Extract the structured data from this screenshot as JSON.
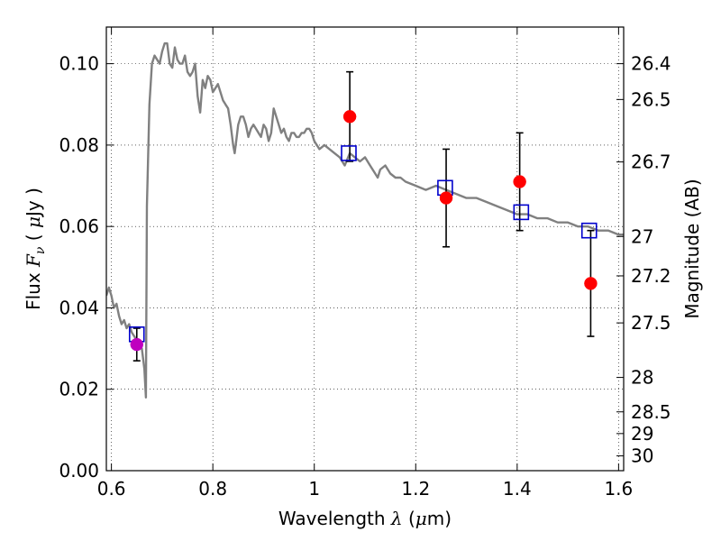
{
  "chart_data": {
    "type": "scatter",
    "xlabel": {
      "prefix": "Wavelength  ",
      "symbol": "λ",
      "suffix": " (",
      "unit_symbol": "μ",
      "unit": "m)"
    },
    "ylabel": {
      "prefix": "Flux  ",
      "symbol": "F",
      "subscript": "ν",
      "suffix": "  ( ",
      "unit_symbol": "μ",
      "unit": "Jy )"
    },
    "y2label": "Magnitude (AB)",
    "xlim": [
      0.59,
      1.61
    ],
    "ylim": [
      0.0,
      0.109
    ],
    "grid": true,
    "x_ticks": [
      {
        "value": 0.6,
        "label": "0.6"
      },
      {
        "value": 0.8,
        "label": "0.8"
      },
      {
        "value": 1.0,
        "label": "1"
      },
      {
        "value": 1.2,
        "label": "1.2"
      },
      {
        "value": 1.4,
        "label": "1.4"
      },
      {
        "value": 1.6,
        "label": "1.6"
      }
    ],
    "y_ticks": [
      {
        "value": 0.0,
        "label": "0.00"
      },
      {
        "value": 0.02,
        "label": "0.02"
      },
      {
        "value": 0.04,
        "label": "0.04"
      },
      {
        "value": 0.06,
        "label": "0.06"
      },
      {
        "value": 0.08,
        "label": "0.08"
      },
      {
        "value": 0.1,
        "label": "0.10"
      }
    ],
    "y2_ticks": [
      {
        "value": 26.4,
        "label": "26.4"
      },
      {
        "value": 26.5,
        "label": "26.5"
      },
      {
        "value": 26.7,
        "label": "26.7"
      },
      {
        "value": 27.0,
        "label": "27"
      },
      {
        "value": 27.2,
        "label": "27.2"
      },
      {
        "value": 27.5,
        "label": "27.5"
      },
      {
        "value": 28.0,
        "label": "28"
      },
      {
        "value": 28.5,
        "label": "28.5"
      },
      {
        "value": 29.0,
        "label": "29"
      },
      {
        "value": 30.0,
        "label": "30"
      }
    ],
    "colors": {
      "model": "#808080",
      "observed": "#ff0000",
      "observed_blue_band": "#bf00bf",
      "synthetic": "#0000cc",
      "errorbar": "#000000"
    },
    "model_spectrum": [
      [
        0.59,
        0.043
      ],
      [
        0.595,
        0.045
      ],
      [
        0.6,
        0.043
      ],
      [
        0.605,
        0.04
      ],
      [
        0.61,
        0.041
      ],
      [
        0.615,
        0.038
      ],
      [
        0.62,
        0.036
      ],
      [
        0.625,
        0.037
      ],
      [
        0.63,
        0.035
      ],
      [
        0.635,
        0.036
      ],
      [
        0.64,
        0.034
      ],
      [
        0.645,
        0.033
      ],
      [
        0.65,
        0.032
      ],
      [
        0.655,
        0.031
      ],
      [
        0.66,
        0.03
      ],
      [
        0.665,
        0.025
      ],
      [
        0.668,
        0.018
      ],
      [
        0.67,
        0.065
      ],
      [
        0.675,
        0.09
      ],
      [
        0.68,
        0.1
      ],
      [
        0.685,
        0.102
      ],
      [
        0.69,
        0.101
      ],
      [
        0.695,
        0.1
      ],
      [
        0.7,
        0.103
      ],
      [
        0.705,
        0.105
      ],
      [
        0.71,
        0.105
      ],
      [
        0.715,
        0.1
      ],
      [
        0.72,
        0.099
      ],
      [
        0.725,
        0.104
      ],
      [
        0.73,
        0.101
      ],
      [
        0.735,
        0.1
      ],
      [
        0.74,
        0.1
      ],
      [
        0.745,
        0.102
      ],
      [
        0.75,
        0.098
      ],
      [
        0.755,
        0.097
      ],
      [
        0.76,
        0.098
      ],
      [
        0.765,
        0.1
      ],
      [
        0.77,
        0.092
      ],
      [
        0.775,
        0.088
      ],
      [
        0.78,
        0.096
      ],
      [
        0.785,
        0.094
      ],
      [
        0.79,
        0.097
      ],
      [
        0.795,
        0.096
      ],
      [
        0.8,
        0.093
      ],
      [
        0.805,
        0.094
      ],
      [
        0.81,
        0.095
      ],
      [
        0.815,
        0.093
      ],
      [
        0.82,
        0.091
      ],
      [
        0.825,
        0.09
      ],
      [
        0.83,
        0.089
      ],
      [
        0.835,
        0.085
      ],
      [
        0.84,
        0.08
      ],
      [
        0.843,
        0.078
      ],
      [
        0.846,
        0.081
      ],
      [
        0.85,
        0.085
      ],
      [
        0.855,
        0.087
      ],
      [
        0.86,
        0.087
      ],
      [
        0.865,
        0.085
      ],
      [
        0.87,
        0.082
      ],
      [
        0.875,
        0.084
      ],
      [
        0.88,
        0.085
      ],
      [
        0.885,
        0.084
      ],
      [
        0.89,
        0.083
      ],
      [
        0.895,
        0.082
      ],
      [
        0.9,
        0.085
      ],
      [
        0.905,
        0.084
      ],
      [
        0.91,
        0.081
      ],
      [
        0.915,
        0.083
      ],
      [
        0.92,
        0.089
      ],
      [
        0.925,
        0.087
      ],
      [
        0.93,
        0.085
      ],
      [
        0.935,
        0.083
      ],
      [
        0.94,
        0.084
      ],
      [
        0.945,
        0.082
      ],
      [
        0.95,
        0.081
      ],
      [
        0.955,
        0.083
      ],
      [
        0.96,
        0.083
      ],
      [
        0.965,
        0.082
      ],
      [
        0.97,
        0.082
      ],
      [
        0.975,
        0.083
      ],
      [
        0.98,
        0.083
      ],
      [
        0.985,
        0.084
      ],
      [
        0.99,
        0.084
      ],
      [
        0.995,
        0.083
      ],
      [
        1.0,
        0.081
      ],
      [
        1.01,
        0.079
      ],
      [
        1.02,
        0.08
      ],
      [
        1.03,
        0.079
      ],
      [
        1.04,
        0.078
      ],
      [
        1.05,
        0.077
      ],
      [
        1.06,
        0.075
      ],
      [
        1.07,
        0.078
      ],
      [
        1.08,
        0.077
      ],
      [
        1.09,
        0.076
      ],
      [
        1.1,
        0.077
      ],
      [
        1.11,
        0.075
      ],
      [
        1.12,
        0.073
      ],
      [
        1.125,
        0.072
      ],
      [
        1.13,
        0.074
      ],
      [
        1.14,
        0.075
      ],
      [
        1.15,
        0.073
      ],
      [
        1.16,
        0.072
      ],
      [
        1.17,
        0.072
      ],
      [
        1.18,
        0.071
      ],
      [
        1.2,
        0.07
      ],
      [
        1.22,
        0.069
      ],
      [
        1.24,
        0.07
      ],
      [
        1.26,
        0.069
      ],
      [
        1.28,
        0.068
      ],
      [
        1.3,
        0.067
      ],
      [
        1.32,
        0.067
      ],
      [
        1.34,
        0.066
      ],
      [
        1.36,
        0.065
      ],
      [
        1.38,
        0.064
      ],
      [
        1.4,
        0.063
      ],
      [
        1.42,
        0.063
      ],
      [
        1.44,
        0.062
      ],
      [
        1.46,
        0.062
      ],
      [
        1.48,
        0.061
      ],
      [
        1.5,
        0.061
      ],
      [
        1.52,
        0.06
      ],
      [
        1.54,
        0.06
      ],
      [
        1.56,
        0.059
      ],
      [
        1.58,
        0.059
      ],
      [
        1.6,
        0.058
      ],
      [
        1.61,
        0.058
      ]
    ],
    "observed": [
      {
        "x": 0.65,
        "y": 0.031,
        "err": 0.004,
        "color": "#bf00bf"
      },
      {
        "x": 1.07,
        "y": 0.087,
        "err": 0.011,
        "color": "#ff0000"
      },
      {
        "x": 1.26,
        "y": 0.067,
        "err": 0.012,
        "color": "#ff0000"
      },
      {
        "x": 1.405,
        "y": 0.071,
        "err": 0.012,
        "color": "#ff0000"
      },
      {
        "x": 1.545,
        "y": 0.046,
        "err": 0.013,
        "color": "#ff0000"
      }
    ],
    "synthetic": [
      {
        "x": 0.65,
        "y": 0.0335
      },
      {
        "x": 1.068,
        "y": 0.078
      },
      {
        "x": 1.258,
        "y": 0.0695
      },
      {
        "x": 1.408,
        "y": 0.0635
      },
      {
        "x": 1.542,
        "y": 0.059
      }
    ]
  }
}
